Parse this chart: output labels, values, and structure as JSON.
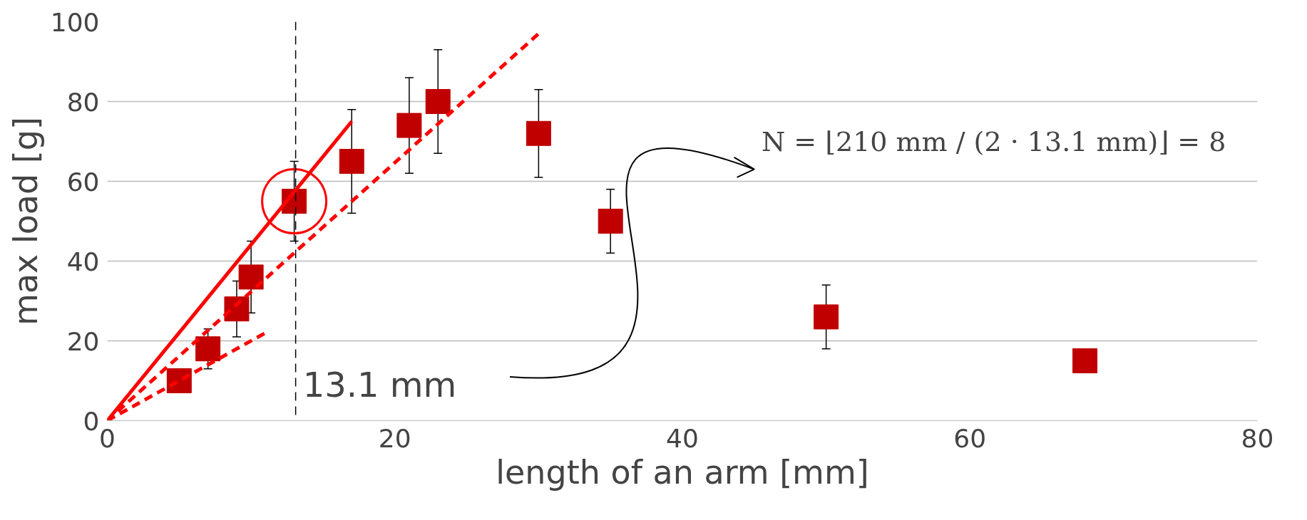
{
  "chart_data": {
    "type": "scatter",
    "xlabel": "length of an arm [mm]",
    "ylabel": "max load [g]",
    "xlim": [
      0,
      80
    ],
    "ylim": [
      0,
      100
    ],
    "xticks": [
      0,
      20,
      40,
      60,
      80
    ],
    "yticks": [
      0,
      20,
      40,
      60,
      80,
      100
    ],
    "grid": "y",
    "series": [
      {
        "color": "#c00000",
        "marker": "square",
        "x": [
          5,
          7,
          9,
          10,
          13,
          17,
          21,
          23,
          30,
          35,
          50,
          68
        ],
        "values": [
          10,
          18,
          28,
          36,
          55,
          65,
          74,
          80,
          72,
          50,
          26,
          15
        ],
        "errors": [
          null,
          [
            13,
            23
          ],
          [
            21,
            35
          ],
          [
            27,
            45
          ],
          [
            45,
            65
          ],
          [
            52,
            78
          ],
          [
            62,
            86
          ],
          [
            67,
            93
          ],
          [
            61,
            83
          ],
          [
            42,
            58
          ],
          [
            18,
            34
          ],
          null
        ]
      },
      {
        "type": "line",
        "color": "#ff0000",
        "line_style": "solid",
        "marker": "none",
        "x": [
          0,
          17
        ],
        "values": [
          0,
          75
        ]
      },
      {
        "type": "line",
        "color": "#ff0000",
        "line_style": "dashed",
        "marker": "none",
        "x": [
          0,
          30
        ],
        "values": [
          0,
          97
        ]
      },
      {
        "type": "line",
        "color": "#ff0000",
        "line_style": "dashed",
        "marker": "none",
        "x": [
          0,
          11
        ],
        "values": [
          0,
          22
        ]
      }
    ],
    "ref_lines": [
      {
        "axis": "x",
        "value": 13.1,
        "label": "13.1 mm",
        "color": "#000000",
        "line_style": "dashed"
      }
    ],
    "annotations": [
      "N = ⌊210 mm / (2 · 13.1 mm)⌋ = 8"
    ]
  }
}
